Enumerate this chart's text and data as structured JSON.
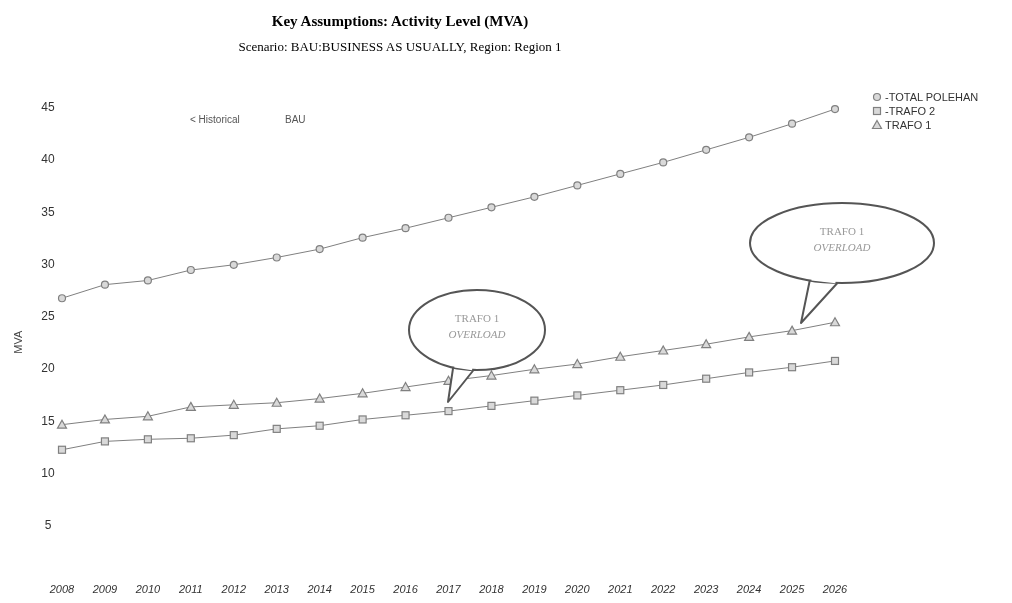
{
  "chart_data": {
    "type": "line",
    "title": "Key Assumptions: Activity Level (MVA)",
    "subtitle": "Scenario: BAU:BUSINESS AS USUALLY, Region: Region 1",
    "ylabel": "MVA",
    "categories": [
      "2008",
      "2009",
      "2010",
      "2011",
      "2012",
      "2013",
      "2014",
      "2015",
      "2016",
      "2017",
      "2018",
      "2019",
      "2020",
      "2021",
      "2022",
      "2023",
      "2024",
      "2025",
      "2026"
    ],
    "series": [
      {
        "name": "-TOTAL POLEHAN",
        "color": "#808080",
        "marker": "circle",
        "values": [
          26.7,
          28.0,
          28.4,
          29.4,
          29.9,
          30.6,
          31.4,
          32.5,
          33.4,
          34.4,
          35.4,
          36.4,
          37.5,
          38.6,
          39.7,
          40.9,
          42.1,
          43.4,
          44.8
        ]
      },
      {
        "name": "-TRAFO 2",
        "color": "#808080",
        "marker": "square",
        "values": [
          12.2,
          13.0,
          13.2,
          13.3,
          13.6,
          14.2,
          14.5,
          15.1,
          15.5,
          15.9,
          16.4,
          16.9,
          17.4,
          17.9,
          18.4,
          19.0,
          19.6,
          20.1,
          20.7
        ]
      },
      {
        "name": "TRAFO 1",
        "color": "#808080",
        "marker": "triangle",
        "values": [
          14.6,
          15.1,
          15.4,
          16.3,
          16.5,
          16.7,
          17.1,
          17.6,
          18.2,
          18.8,
          19.3,
          19.9,
          20.4,
          21.1,
          21.7,
          22.3,
          23.0,
          23.6,
          24.4
        ]
      }
    ],
    "ylim": [
      5,
      45
    ],
    "yticks": [
      5,
      10,
      15,
      20,
      25,
      30,
      35,
      40,
      45
    ],
    "grid": false,
    "legend": "top right",
    "line_style": "solid",
    "annotations": [
      "< Historical",
      "BAU",
      "TRAFO 1\nOVERLOAD",
      "TRAFO 1\nOVERLOAD"
    ]
  }
}
